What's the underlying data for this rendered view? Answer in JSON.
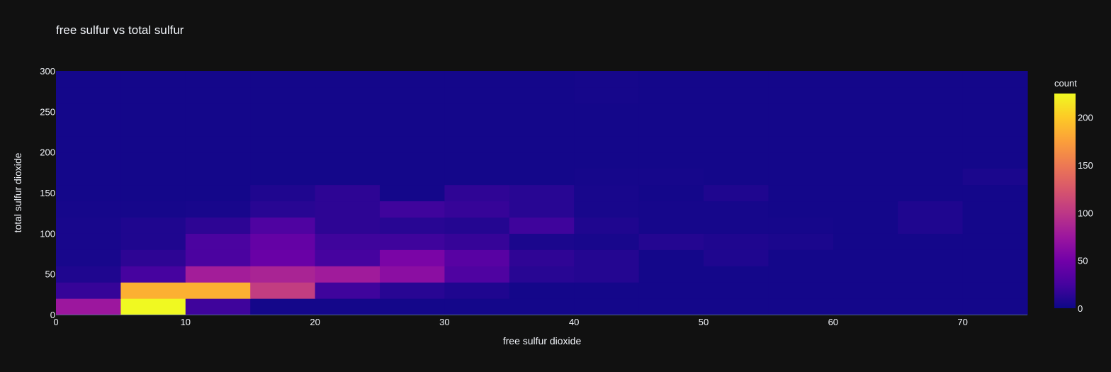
{
  "chart_data": {
    "type": "heatmap",
    "title": "free sulfur vs total sulfur",
    "xlabel": "free sulfur dioxide",
    "ylabel": "total sulfur dioxide",
    "xlim": [
      0,
      75
    ],
    "ylim": [
      0,
      300
    ],
    "x_ticks": [
      0,
      10,
      20,
      30,
      40,
      50,
      60,
      70
    ],
    "y_ticks": [
      0,
      50,
      100,
      150,
      200,
      250,
      300
    ],
    "x_bins": [
      0,
      5,
      10,
      15,
      20,
      25,
      30,
      35,
      40,
      45,
      50,
      55,
      60,
      65,
      70,
      75
    ],
    "y_bins": [
      0,
      20,
      40,
      60,
      80,
      100,
      120,
      140,
      160,
      180,
      200,
      220,
      240,
      260,
      280,
      300
    ],
    "z": [
      [
        75,
        225,
        22,
        3,
        3,
        3,
        3,
        3,
        3,
        3,
        3,
        3,
        3,
        3,
        3
      ],
      [
        18,
        185,
        185,
        105,
        22,
        12,
        8,
        3,
        3,
        3,
        3,
        3,
        3,
        3,
        3
      ],
      [
        8,
        25,
        80,
        85,
        78,
        65,
        30,
        12,
        10,
        3,
        3,
        3,
        3,
        3,
        3
      ],
      [
        5,
        14,
        28,
        45,
        25,
        55,
        35,
        15,
        10,
        3,
        8,
        3,
        3,
        3,
        3
      ],
      [
        5,
        8,
        28,
        42,
        22,
        22,
        18,
        6,
        5,
        10,
        8,
        6,
        3,
        3,
        3
      ],
      [
        5,
        8,
        14,
        30,
        14,
        12,
        10,
        22,
        8,
        4,
        4,
        4,
        3,
        8,
        3
      ],
      [
        4,
        4,
        5,
        12,
        14,
        22,
        18,
        12,
        5,
        4,
        4,
        3,
        3,
        8,
        3
      ],
      [
        3,
        3,
        3,
        8,
        14,
        3,
        15,
        12,
        5,
        3,
        8,
        3,
        3,
        3,
        3
      ],
      [
        3,
        3,
        3,
        3,
        3,
        3,
        3,
        3,
        4,
        4,
        3,
        3,
        3,
        3,
        6
      ],
      [
        3,
        3,
        3,
        3,
        3,
        3,
        3,
        3,
        3,
        3,
        3,
        3,
        3,
        3,
        3
      ],
      [
        3,
        3,
        3,
        3,
        3,
        3,
        3,
        3,
        3,
        3,
        3,
        3,
        3,
        3,
        3
      ],
      [
        3,
        3,
        3,
        3,
        3,
        3,
        3,
        3,
        3,
        3,
        3,
        3,
        3,
        3,
        3
      ],
      [
        3,
        3,
        3,
        3,
        3,
        3,
        3,
        3,
        3,
        3,
        3,
        3,
        3,
        3,
        3
      ],
      [
        3,
        3,
        3,
        3,
        3,
        3,
        3,
        3,
        4,
        3,
        3,
        3,
        3,
        3,
        3
      ],
      [
        3,
        3,
        3,
        3,
        3,
        3,
        3,
        3,
        4,
        3,
        3,
        3,
        3,
        3,
        3
      ]
    ],
    "colorbar": {
      "title": "count",
      "ticks": [
        0,
        50,
        100,
        150,
        200
      ],
      "range": [
        0,
        225
      ],
      "colorscale": [
        "#0d0887",
        "#46039f",
        "#7201a8",
        "#9c179e",
        "#bd3786",
        "#d8576b",
        "#ed7953",
        "#fb9f3a",
        "#fdca26",
        "#f0f921"
      ]
    },
    "grid": false,
    "legend": "none"
  },
  "colors": {
    "background": "#111111",
    "text": "#f2f5fa",
    "axis_line": "#506784"
  }
}
